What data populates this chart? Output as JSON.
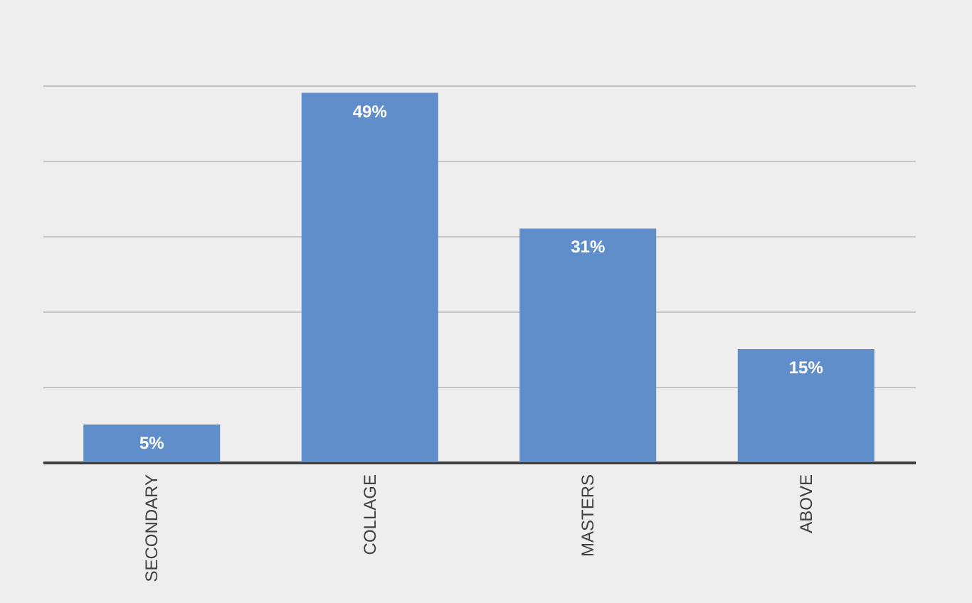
{
  "chart_data": {
    "type": "bar",
    "categories": [
      "SECONDARY",
      "COLLAGE",
      "MASTERS",
      "ABOVE"
    ],
    "values": [
      5,
      49,
      31,
      15
    ],
    "color": "#5f8ecb",
    "ylim": [
      0,
      50
    ],
    "yticks": [
      {
        "value": 0,
        "label": null
      },
      {
        "value": 10,
        "label": null
      },
      {
        "value": 20,
        "label": null
      },
      {
        "value": 30,
        "label": null
      },
      {
        "value": 40,
        "label": null
      },
      {
        "value": 50,
        "label": null
      }
    ],
    "grid": "y",
    "tick_labels": "x",
    "data_labels": true,
    "value_labels": [
      "5%",
      "49%",
      "31%",
      "15%"
    ]
  }
}
